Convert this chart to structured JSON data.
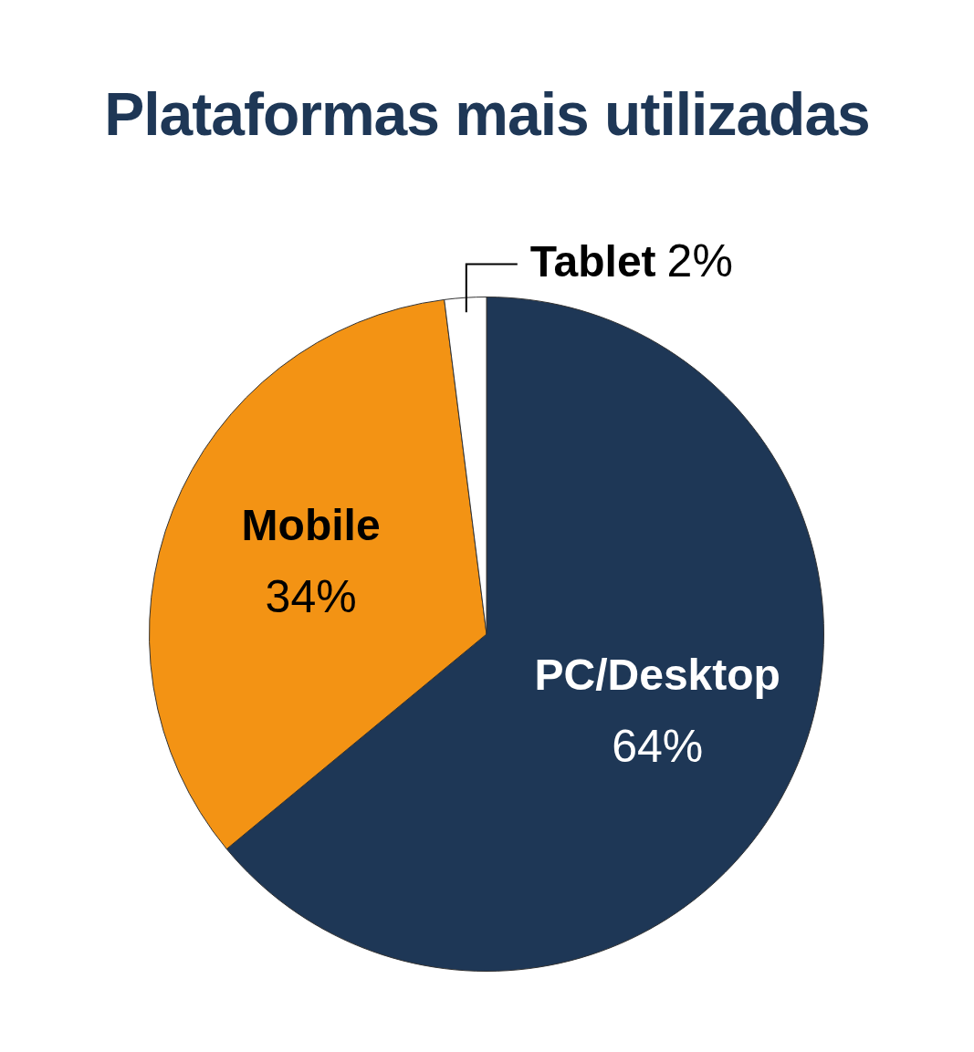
{
  "chart_data": {
    "type": "pie",
    "title": "Plataformas mais utilizadas",
    "categories": [
      "PC/Desktop",
      "Mobile",
      "Tablet"
    ],
    "values": [
      64,
      34,
      2
    ],
    "colors": [
      "#1e3756",
      "#f39314",
      "#ffffff"
    ],
    "value_labels": [
      "64%",
      "34%",
      "2%"
    ]
  }
}
